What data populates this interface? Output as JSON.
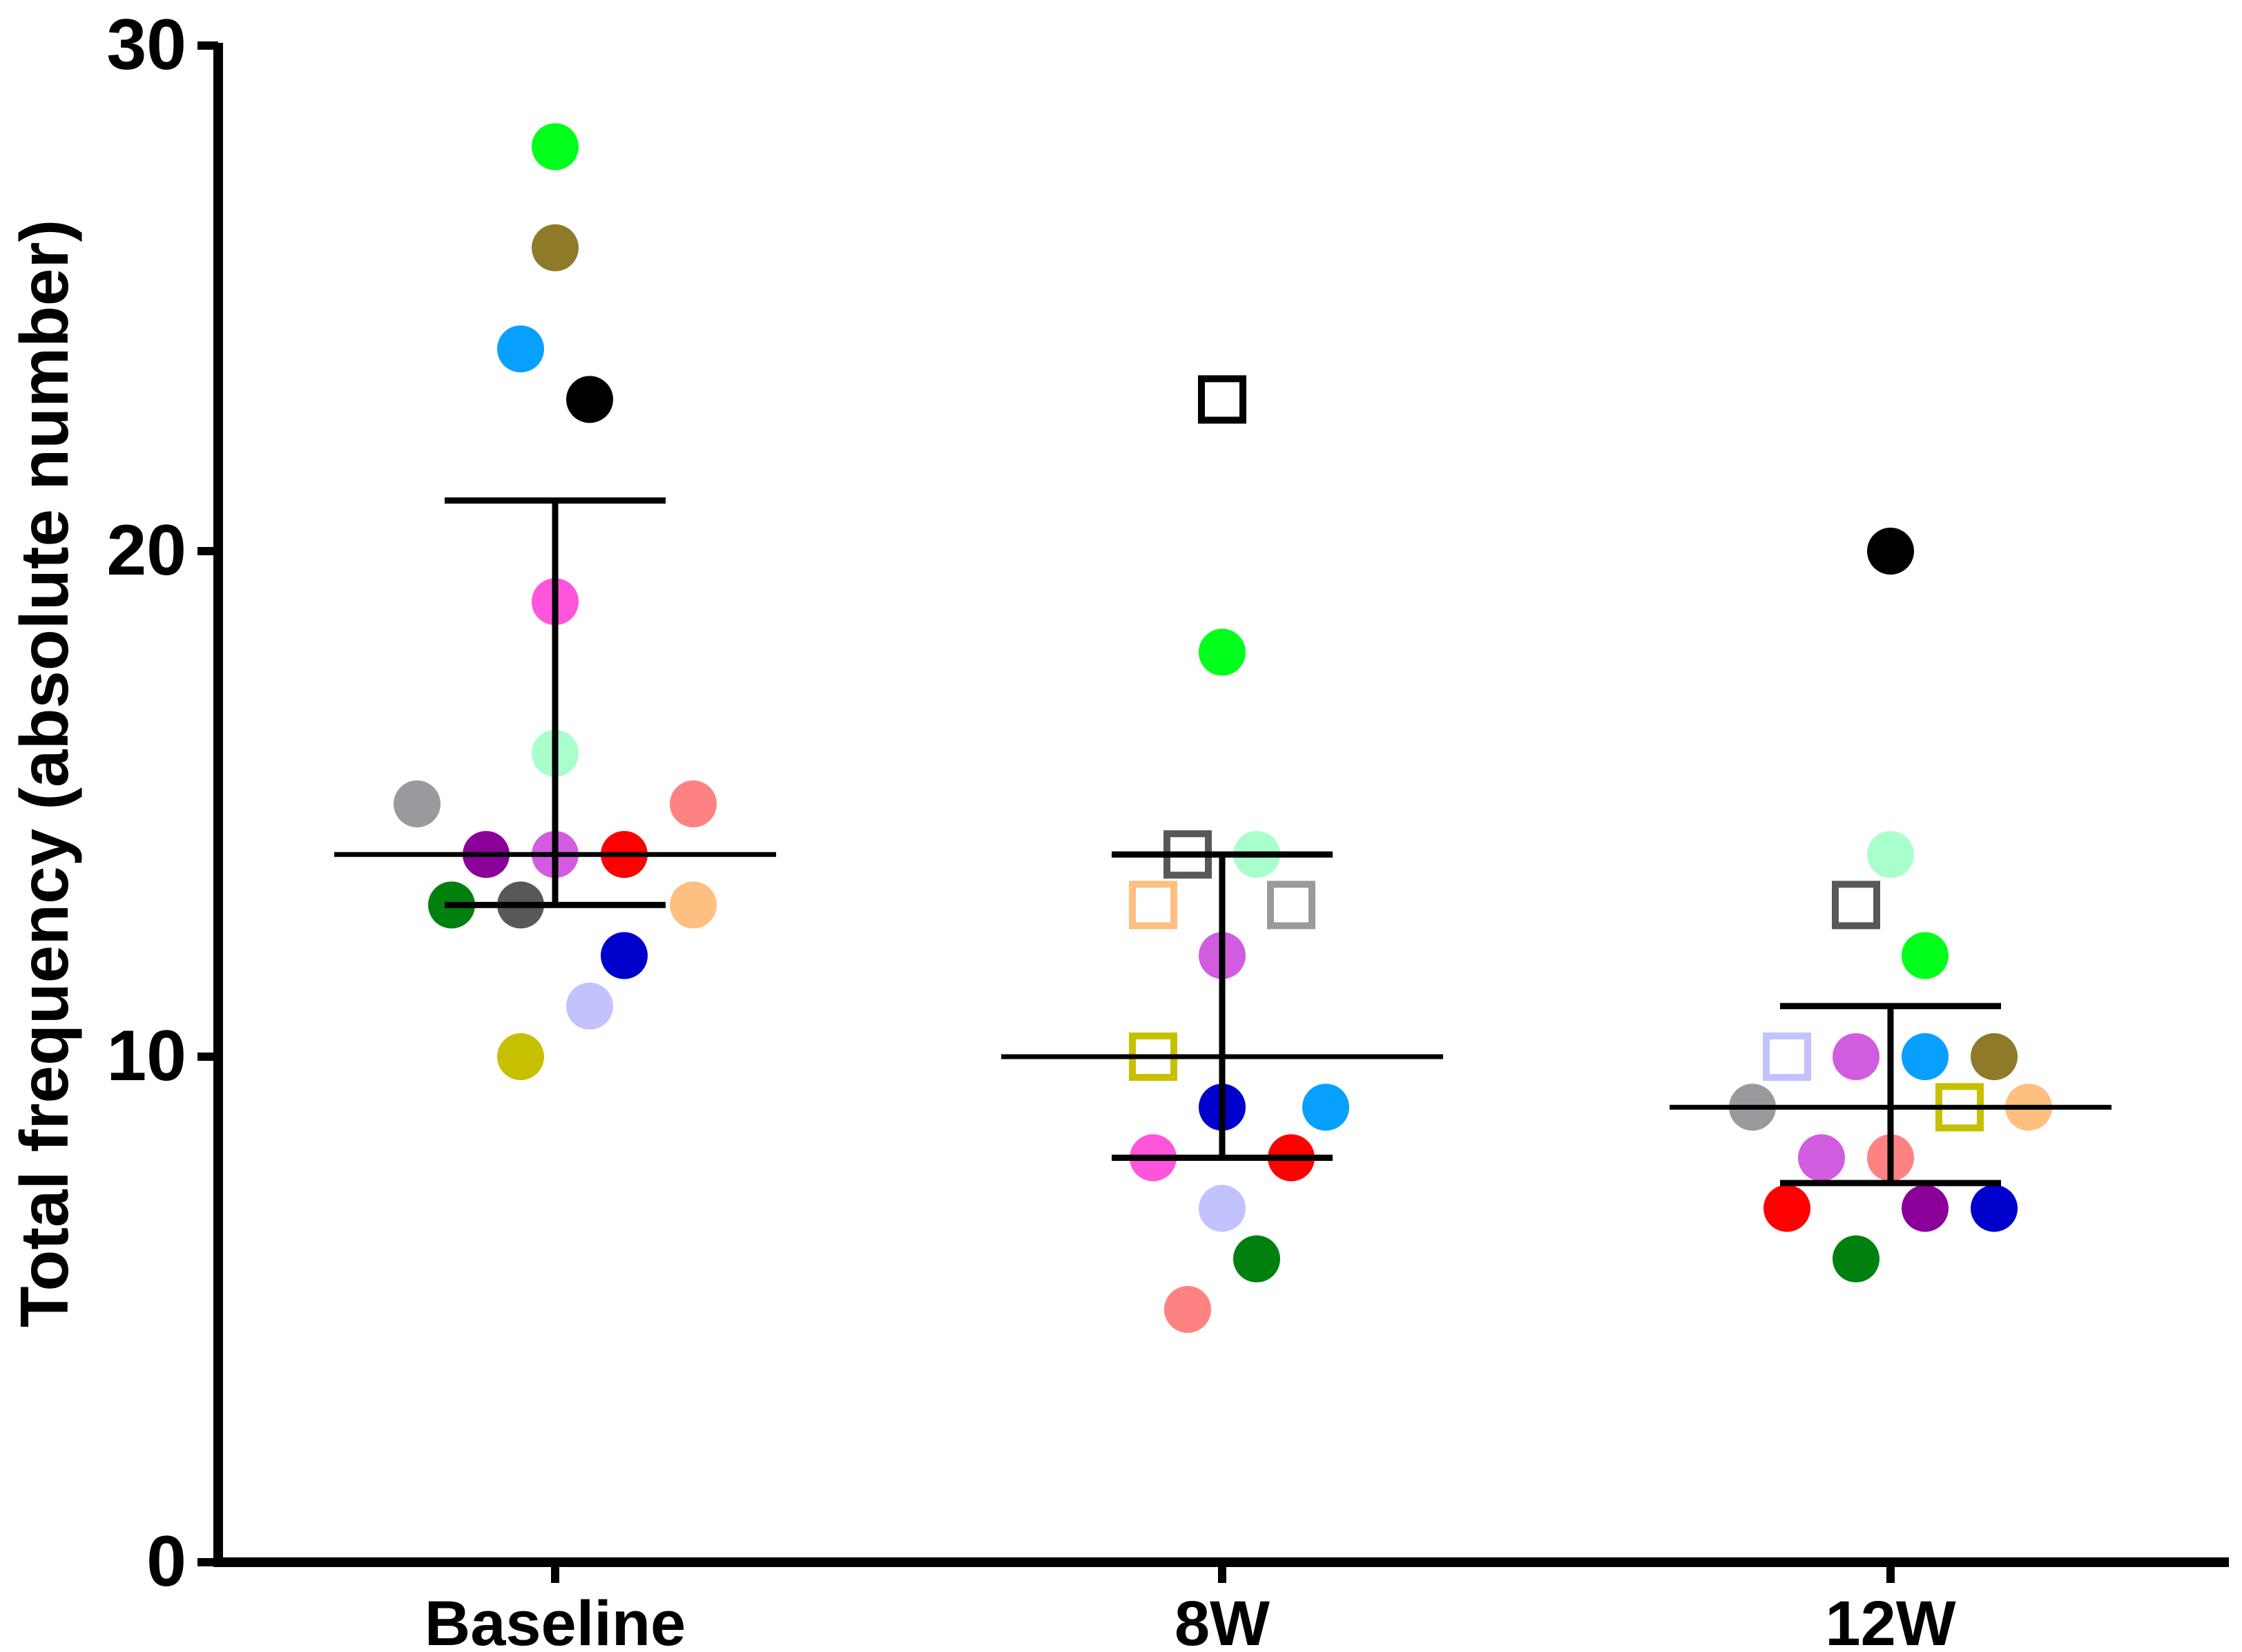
{
  "chart_data": {
    "type": "scatter",
    "title": "",
    "xlabel": "",
    "ylabel": "Total frequency (absolute number)",
    "ylim": [
      0,
      30
    ],
    "yticks": [
      0,
      10,
      20,
      30
    ],
    "categories": [
      "Baseline",
      "8W",
      "12W"
    ],
    "grid": false,
    "groups": [
      {
        "name": "Baseline",
        "median": 14,
        "iqr": [
          13,
          21
        ],
        "points": [
          {
            "y": 28,
            "offset": 0.0,
            "shape": "circle",
            "color": "#00ff1a"
          },
          {
            "y": 26,
            "offset": 0.0,
            "shape": "circle",
            "color": "#8f7a2a"
          },
          {
            "y": 24,
            "offset": -0.5,
            "shape": "circle",
            "color": "#08a0ff"
          },
          {
            "y": 23,
            "offset": 0.5,
            "shape": "circle",
            "color": "#000000"
          },
          {
            "y": 19,
            "offset": 0.0,
            "shape": "circle",
            "color": "#ff55dd"
          },
          {
            "y": 16,
            "offset": 0.0,
            "shape": "circle",
            "color": "#a8ffcc"
          },
          {
            "y": 15,
            "offset": -2.0,
            "shape": "circle",
            "color": "#9a9a9e"
          },
          {
            "y": 15,
            "offset": 2.0,
            "shape": "circle",
            "color": "#ff8282"
          },
          {
            "y": 14,
            "offset": -1.0,
            "shape": "circle",
            "color": "#8a0099"
          },
          {
            "y": 14,
            "offset": 0.0,
            "shape": "circle",
            "color": "#d25ce0"
          },
          {
            "y": 14,
            "offset": 1.0,
            "shape": "circle",
            "color": "#ff0000"
          },
          {
            "y": 13,
            "offset": -1.5,
            "shape": "circle",
            "color": "#00800e"
          },
          {
            "y": 13,
            "offset": -0.5,
            "shape": "circle",
            "color": "#585858"
          },
          {
            "y": 13,
            "offset": 2.0,
            "shape": "circle",
            "color": "#ffbf80"
          },
          {
            "y": 12,
            "offset": 1.0,
            "shape": "circle",
            "color": "#0000cc"
          },
          {
            "y": 11,
            "offset": 0.5,
            "shape": "circle",
            "color": "#c2c2ff"
          },
          {
            "y": 10,
            "offset": -0.5,
            "shape": "circle",
            "color": "#c7c000"
          }
        ]
      },
      {
        "name": "8W",
        "median": 10,
        "iqr": [
          8,
          14
        ],
        "points": [
          {
            "y": 23,
            "offset": 0.0,
            "shape": "square",
            "color": "#000000"
          },
          {
            "y": 18,
            "offset": 0.0,
            "shape": "circle",
            "color": "#00ff1a"
          },
          {
            "y": 14,
            "offset": -0.5,
            "shape": "square",
            "color": "#585858"
          },
          {
            "y": 14,
            "offset": 0.5,
            "shape": "circle",
            "color": "#a8ffcc"
          },
          {
            "y": 13,
            "offset": -1.0,
            "shape": "square",
            "color": "#ffbf80"
          },
          {
            "y": 13,
            "offset": 1.0,
            "shape": "square",
            "color": "#9a9a9e"
          },
          {
            "y": 12,
            "offset": 0.0,
            "shape": "circle",
            "color": "#d25ce0"
          },
          {
            "y": 10,
            "offset": -1.0,
            "shape": "square",
            "color": "#c7c000"
          },
          {
            "y": 9,
            "offset": 0.0,
            "shape": "circle",
            "color": "#0000cc"
          },
          {
            "y": 9,
            "offset": 1.5,
            "shape": "circle",
            "color": "#08a0ff"
          },
          {
            "y": 8,
            "offset": -1.0,
            "shape": "circle",
            "color": "#ff55dd"
          },
          {
            "y": 8,
            "offset": 1.0,
            "shape": "circle",
            "color": "#ff0000"
          },
          {
            "y": 7,
            "offset": 0.0,
            "shape": "circle",
            "color": "#c2c2ff"
          },
          {
            "y": 6,
            "offset": 0.5,
            "shape": "circle",
            "color": "#00800e"
          },
          {
            "y": 5,
            "offset": -0.5,
            "shape": "circle",
            "color": "#ff8282"
          }
        ]
      },
      {
        "name": "12W",
        "median": 9,
        "iqr": [
          7.5,
          11
        ],
        "points": [
          {
            "y": 20,
            "offset": 0.0,
            "shape": "circle",
            "color": "#000000"
          },
          {
            "y": 14,
            "offset": 0.0,
            "shape": "circle",
            "color": "#a8ffcc"
          },
          {
            "y": 13,
            "offset": -0.5,
            "shape": "square",
            "color": "#585858"
          },
          {
            "y": 12,
            "offset": 0.5,
            "shape": "circle",
            "color": "#00ff1a"
          },
          {
            "y": 10,
            "offset": -1.5,
            "shape": "square",
            "color": "#c2c2ff"
          },
          {
            "y": 10,
            "offset": -0.5,
            "shape": "circle",
            "color": "#d25ce0"
          },
          {
            "y": 10,
            "offset": 0.5,
            "shape": "circle",
            "color": "#08a0ff"
          },
          {
            "y": 10,
            "offset": 1.5,
            "shape": "circle",
            "color": "#8f7a2a"
          },
          {
            "y": 9,
            "offset": -2.0,
            "shape": "circle",
            "color": "#9a9a9e"
          },
          {
            "y": 9,
            "offset": 1.0,
            "shape": "square",
            "color": "#c7c000"
          },
          {
            "y": 9,
            "offset": 2.0,
            "shape": "circle",
            "color": "#ffbf80"
          },
          {
            "y": 8,
            "offset": -1.0,
            "shape": "circle",
            "color": "#d25ce0"
          },
          {
            "y": 8,
            "offset": 0.0,
            "shape": "circle",
            "color": "#ff8282"
          },
          {
            "y": 7,
            "offset": -1.5,
            "shape": "circle",
            "color": "#ff0000"
          },
          {
            "y": 7,
            "offset": 0.5,
            "shape": "circle",
            "color": "#8a0099"
          },
          {
            "y": 7,
            "offset": 1.5,
            "shape": "circle",
            "color": "#0000cc"
          },
          {
            "y": 6,
            "offset": -0.5,
            "shape": "circle",
            "color": "#00800e"
          }
        ]
      }
    ]
  }
}
